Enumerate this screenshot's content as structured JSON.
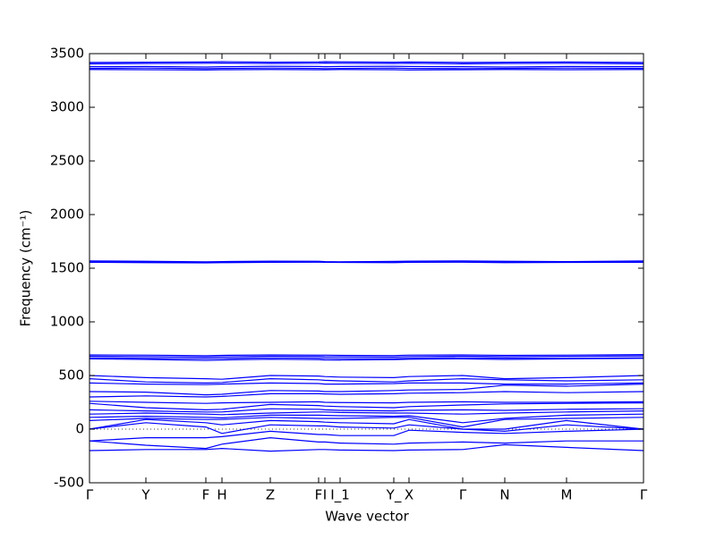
{
  "chart_data": {
    "type": "line",
    "x_label": "Wave vector",
    "y_label": "Frequency (cm⁻¹)",
    "x": [
      0,
      63,
      130,
      148,
      202,
      256,
      263,
      280,
      340,
      357,
      417,
      464,
      533,
      619
    ],
    "xlim": [
      0,
      619
    ],
    "xticks": [
      {
        "value": 0,
        "label": "Γ"
      },
      {
        "value": 63,
        "label": "Y"
      },
      {
        "value": 130,
        "label": "F"
      },
      {
        "value": 148,
        "label": "H"
      },
      {
        "value": 202,
        "label": "Z"
      },
      {
        "value": 256,
        "label": "F"
      },
      {
        "value": 263,
        "label": "I"
      },
      {
        "value": 280,
        "label": "I_1"
      },
      {
        "value": 340,
        "label": "Y_"
      },
      {
        "value": 357,
        "label": "X"
      },
      {
        "value": 417,
        "label": "Γ"
      },
      {
        "value": 464,
        "label": "N"
      },
      {
        "value": 533,
        "label": "M"
      },
      {
        "value": 619,
        "label": "Γ"
      }
    ],
    "ylim": [
      -500,
      3500
    ],
    "yticks": [
      -500,
      0,
      500,
      1000,
      1500,
      2000,
      2500,
      3000,
      3500
    ],
    "reference_line": 0,
    "series": [
      {
        "color": "#0000ff",
        "values": [
          3418,
          3420,
          3422,
          3425,
          3420,
          3422,
          3425,
          3423,
          3420,
          3422,
          3418,
          3420,
          3422,
          3418
        ]
      },
      {
        "color": "#0000ff",
        "values": [
          3405,
          3408,
          3410,
          3412,
          3408,
          3410,
          3412,
          3410,
          3408,
          3410,
          3405,
          3408,
          3410,
          3405
        ]
      },
      {
        "color": "#0000ff",
        "values": [
          3378,
          3380,
          3375,
          3378,
          3382,
          3380,
          3378,
          3380,
          3382,
          3380,
          3378,
          3375,
          3380,
          3378
        ]
      },
      {
        "color": "#0000ff",
        "values": [
          3362,
          3365,
          3360,
          3362,
          3365,
          3362,
          3360,
          3362,
          3365,
          3362,
          3360,
          3362,
          3365,
          3362
        ]
      },
      {
        "color": "#0000ff",
        "values": [
          3352,
          3350,
          3348,
          3350,
          3352,
          3350,
          3350,
          3352,
          3350,
          3348,
          3350,
          3352,
          3350,
          3352
        ]
      },
      {
        "color": "#0000ff",
        "values": [
          1568,
          1565,
          1560,
          1562,
          1566,
          1565,
          1562,
          1560,
          1564,
          1566,
          1568,
          1565,
          1562,
          1568
        ]
      },
      {
        "color": "#0000ff",
        "values": [
          1562,
          1558,
          1555,
          1558,
          1560,
          1560,
          1558,
          1558,
          1560,
          1560,
          1562,
          1558,
          1558,
          1562
        ]
      },
      {
        "color": "#0000ff",
        "values": [
          1555,
          1552,
          1550,
          1552,
          1555,
          1556,
          1555,
          1554,
          1552,
          1555,
          1556,
          1552,
          1554,
          1555
        ]
      },
      {
        "color": "#0000ff",
        "values": [
          692,
          690,
          685,
          688,
          692,
          690,
          690,
          688,
          686,
          690,
          692,
          688,
          690,
          695
        ]
      },
      {
        "color": "#0000ff",
        "values": [
          680,
          676,
          672,
          675,
          680,
          678,
          676,
          675,
          672,
          676,
          680,
          676,
          678,
          682
        ]
      },
      {
        "color": "#0000ff",
        "values": [
          665,
          660,
          656,
          660,
          665,
          662,
          660,
          658,
          656,
          660,
          665,
          662,
          660,
          665
        ]
      },
      {
        "color": "#0000ff",
        "values": [
          655,
          650,
          640,
          645,
          652,
          648,
          645,
          644,
          648,
          652,
          655,
          650,
          655,
          660
        ]
      },
      {
        "color": "#0000ff",
        "values": [
          500,
          480,
          470,
          465,
          500,
          495,
          490,
          485,
          480,
          490,
          500,
          470,
          480,
          500
        ]
      },
      {
        "color": "#0000ff",
        "values": [
          470,
          440,
          430,
          435,
          470,
          460,
          455,
          450,
          440,
          450,
          470,
          460,
          450,
          460
        ]
      },
      {
        "color": "#0000ff",
        "values": [
          430,
          420,
          415,
          420,
          430,
          425,
          420,
          420,
          425,
          430,
          430,
          420,
          420,
          430
        ]
      },
      {
        "color": "#0000ff",
        "values": [
          350,
          345,
          320,
          325,
          360,
          355,
          350,
          350,
          360,
          365,
          370,
          410,
          400,
          420
        ]
      },
      {
        "color": "#0000ff",
        "values": [
          300,
          310,
          300,
          305,
          330,
          330,
          328,
          325,
          330,
          335,
          340,
          350,
          340,
          350
        ]
      },
      {
        "color": "#0000ff",
        "values": [
          260,
          250,
          240,
          245,
          250,
          255,
          250,
          248,
          245,
          250,
          255,
          250,
          250,
          255
        ]
      },
      {
        "color": "#0000ff",
        "values": [
          240,
          200,
          180,
          185,
          230,
          220,
          215,
          210,
          200,
          210,
          225,
          235,
          240,
          245
        ]
      },
      {
        "color": "#0000ff",
        "values": [
          180,
          170,
          160,
          160,
          190,
          185,
          180,
          175,
          170,
          175,
          180,
          175,
          185,
          190
        ]
      },
      {
        "color": "#0000ff",
        "values": [
          140,
          150,
          140,
          135,
          150,
          160,
          160,
          155,
          150,
          150,
          140,
          150,
          160,
          170
        ]
      },
      {
        "color": "#0000ff",
        "values": [
          110,
          120,
          110,
          105,
          130,
          130,
          128,
          125,
          120,
          125,
          60,
          100,
          130,
          140
        ]
      },
      {
        "color": "#0000ff",
        "values": [
          80,
          100,
          90,
          90,
          110,
          100,
          100,
          100,
          110,
          110,
          20,
          90,
          100,
          110
        ]
      },
      {
        "color": "#0000ff",
        "values": [
          0,
          90,
          60,
          40,
          80,
          70,
          65,
          60,
          50,
          90,
          0,
          0,
          80,
          0
        ]
      },
      {
        "color": "#0000ff",
        "values": [
          0,
          60,
          20,
          -40,
          40,
          30,
          30,
          20,
          10,
          40,
          0,
          -20,
          40,
          0
        ]
      },
      {
        "color": "#0000ff",
        "values": [
          -110,
          -80,
          -80,
          -70,
          -20,
          -50,
          -50,
          -60,
          -60,
          -10,
          -30,
          -40,
          -20,
          0
        ]
      },
      {
        "color": "#0000ff",
        "values": [
          -110,
          -150,
          -180,
          -140,
          -80,
          -120,
          -120,
          -130,
          -140,
          -130,
          -120,
          -130,
          -110,
          -110
        ]
      },
      {
        "color": "#0000ff",
        "values": [
          -200,
          -190,
          -190,
          -180,
          -205,
          -190,
          -190,
          -195,
          -200,
          -195,
          -190,
          -145,
          -170,
          -200
        ]
      }
    ]
  }
}
